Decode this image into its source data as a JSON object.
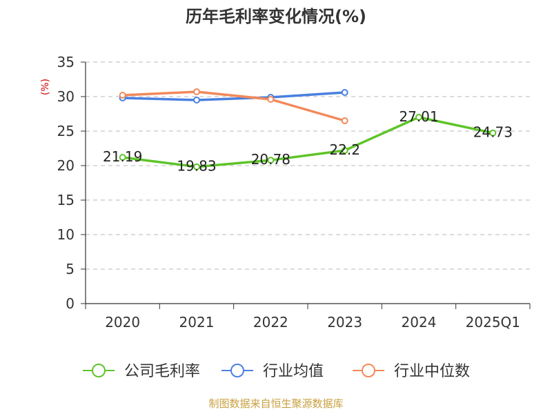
{
  "chart_data": {
    "type": "line",
    "title": "历年毛利率变化情况(%)",
    "ylabel": "(%)",
    "xlabel": "",
    "categories": [
      "2020",
      "2021",
      "2022",
      "2023",
      "2024",
      "2025Q1"
    ],
    "ylim": [
      0,
      35
    ],
    "yticks": [
      0,
      5,
      10,
      15,
      20,
      25,
      30,
      35
    ],
    "grid": true,
    "legend_position": "bottom",
    "series": [
      {
        "name": "公司毛利率",
        "color": "#5ec428",
        "values": [
          21.19,
          19.83,
          20.78,
          22.2,
          27.01,
          24.73
        ],
        "labels": [
          "21.19",
          "19.83",
          "20.78",
          "22.2",
          "27.01",
          "24.73"
        ]
      },
      {
        "name": "行业均值",
        "color": "#4a80e0",
        "values": [
          29.8,
          29.5,
          29.9,
          30.6,
          null,
          null
        ]
      },
      {
        "name": "行业中位数",
        "color": "#f2895a",
        "values": [
          30.2,
          30.7,
          29.6,
          26.5,
          null,
          null
        ]
      }
    ]
  },
  "colors": {
    "axis": "#333333",
    "grid": "#c8c8c8",
    "unit": "#d00000",
    "source": "#c8a040"
  },
  "source": "制图数据来自恒生聚源数据库"
}
